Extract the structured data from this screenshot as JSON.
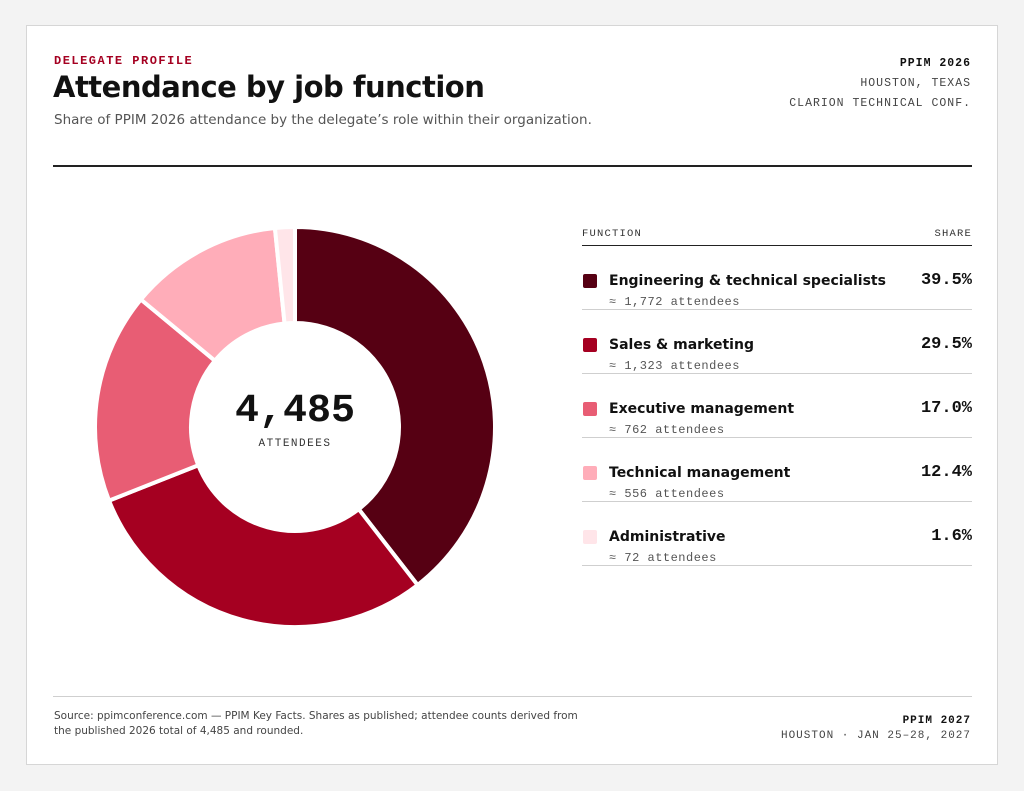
{
  "header": {
    "eyebrow": "DELEGATE PROFILE",
    "title": "Attendance by job function",
    "subtitle": "Share of PPIM 2026 attendance by the delegate’s role within their organization."
  },
  "meta": {
    "line1": "PPIM 2026",
    "line2": "HOUSTON, TEXAS",
    "line3": "CLARION TECHNICAL CONF."
  },
  "center": {
    "total": "4,485",
    "label": "ATTENDEES"
  },
  "legend": {
    "col_function": "FUNCTION",
    "col_share": "SHARE",
    "rows": [
      {
        "name": "Engineering & technical specialists",
        "sub": "≈ 1,772 attendees",
        "share": "39.5%"
      },
      {
        "name": "Sales & marketing",
        "sub": "≈ 1,323 attendees",
        "share": "29.5%"
      },
      {
        "name": "Executive management",
        "sub": "≈ 762 attendees",
        "share": "17.0%"
      },
      {
        "name": "Technical management",
        "sub": "≈ 556 attendees",
        "share": "12.4%"
      },
      {
        "name": "Administrative",
        "sub": "≈ 72 attendees",
        "share": "1.6%"
      }
    ]
  },
  "footer": {
    "source": "Source: ppimconference.com — PPIM Key Facts. Shares as published; attendee counts derived from the published 2026 total of 4,485 and rounded.",
    "right1": "PPIM 2027",
    "right2": "HOUSTON · JAN 25–28, 2027"
  },
  "chart_data": {
    "type": "pie",
    "donut": true,
    "categories": [
      "Engineering & technical specialists",
      "Sales & marketing",
      "Executive management",
      "Technical management",
      "Administrative"
    ],
    "values": [
      39.5,
      29.5,
      17.0,
      12.4,
      1.6
    ],
    "counts": [
      1772,
      1323,
      762,
      556,
      72
    ],
    "total": 4485,
    "colors": [
      "#560013",
      "#a50021",
      "#e85d74",
      "#ffadb9",
      "#ffe5e9"
    ],
    "start": "12 o'clock",
    "direction": "clockwise"
  }
}
